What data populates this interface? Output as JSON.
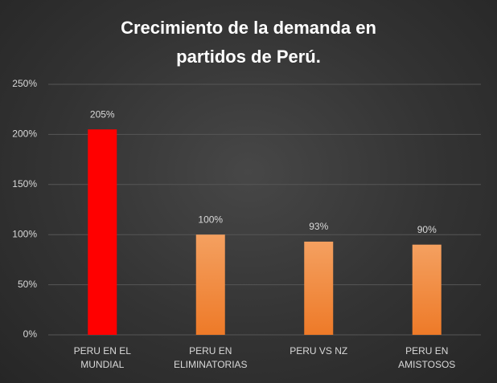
{
  "chart_data": {
    "type": "bar",
    "title": [
      "Crecimiento  de la demanda  en",
      "partidos  de Perú."
    ],
    "categories": [
      "PERU EN EL MUNDIAL",
      "PERU EN ELIMINATORIAS",
      "PERU VS NZ",
      "PERU EN AMISTOSOS"
    ],
    "values": [
      205,
      100,
      93,
      90
    ],
    "value_labels": [
      "205%",
      "100%",
      "93%",
      "90%"
    ],
    "colors": [
      "#ff0000",
      "#f08a3c",
      "#f08a3c",
      "#f08a3c"
    ],
    "ylim": [
      0,
      250
    ],
    "yticks": [
      {
        "value": 0,
        "label": "0%"
      },
      {
        "value": 50,
        "label": "50%"
      },
      {
        "value": 100,
        "label": "100%"
      },
      {
        "value": 150,
        "label": "150%"
      },
      {
        "value": 200,
        "label": "200%"
      },
      {
        "value": 250,
        "label": "250%"
      }
    ],
    "grid": true
  }
}
